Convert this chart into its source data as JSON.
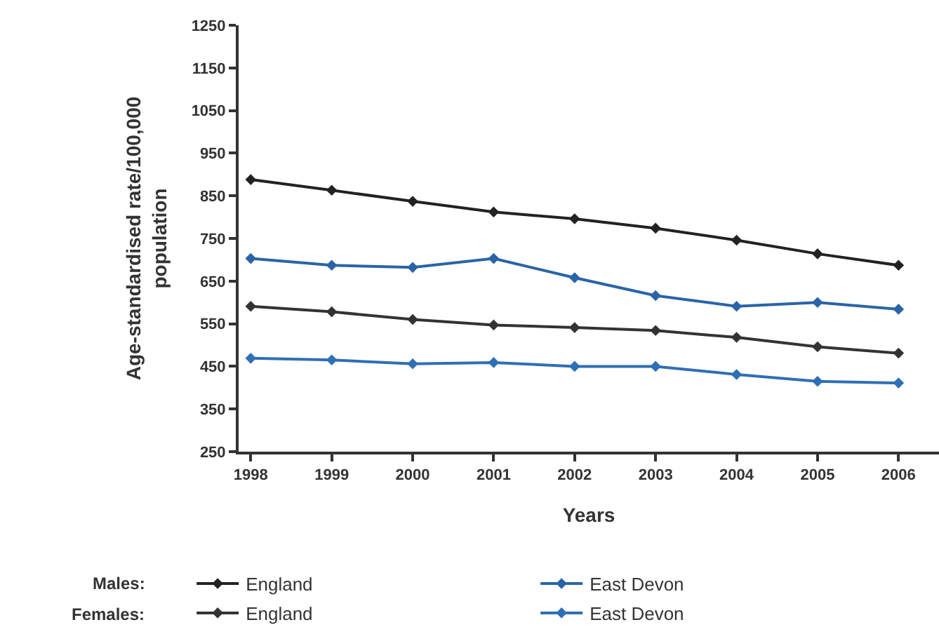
{
  "chart_data": {
    "type": "line",
    "xlabel": "Years",
    "ylabel": "Age-standardised rate/100,000 population",
    "x": [
      1998,
      1999,
      2000,
      2001,
      2002,
      2003,
      2004,
      2005,
      2006
    ],
    "xlim": [
      1997.85,
      2006.5
    ],
    "xticks": [
      1998,
      1999,
      2000,
      2001,
      2002,
      2003,
      2004,
      2005,
      2006
    ],
    "ylim": [
      250,
      1250
    ],
    "yticks": [
      250,
      350,
      450,
      550,
      650,
      750,
      850,
      950,
      1050,
      1150,
      1250
    ],
    "legend": "bottom",
    "marker": "diamond",
    "line_style": "solid",
    "annotations": [
      "Males:",
      "Females:"
    ],
    "series": [
      {
        "name": "England",
        "color": "#222222",
        "values": [
          888,
          863,
          837,
          812,
          796,
          774,
          746,
          714,
          687
        ]
      },
      {
        "name": "East Devon",
        "color": "#2a64a8",
        "values": [
          703,
          687,
          682,
          703,
          658,
          616,
          591,
          600,
          584
        ]
      },
      {
        "name": "England",
        "color": "#333333",
        "values": [
          591,
          578,
          560,
          547,
          541,
          534,
          518,
          496,
          481
        ]
      },
      {
        "name": "East Devon",
        "color": "#2f6fb5",
        "values": [
          469,
          465,
          456,
          459,
          450,
          450,
          431,
          415,
          411
        ]
      }
    ]
  }
}
